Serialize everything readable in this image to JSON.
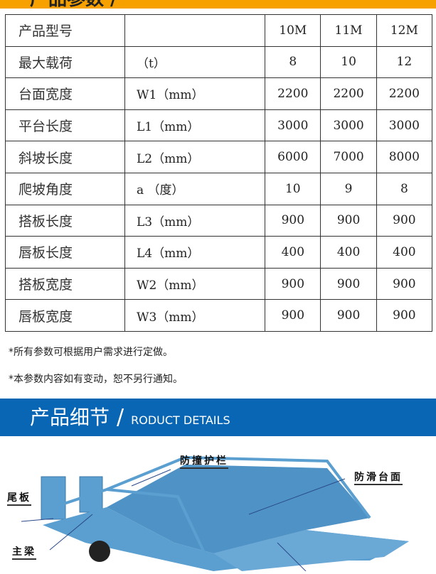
{
  "header_title": "产品参数 /",
  "table": {
    "rows": [
      [
        "产品型号",
        "",
        "10M",
        "11M",
        "12M"
      ],
      [
        "最大载荷",
        "（t）",
        "8",
        "10",
        "12"
      ],
      [
        "台面宽度",
        "W1（mm）",
        "2200",
        "2200",
        "2200"
      ],
      [
        "平台长度",
        "L1（mm）",
        "3000",
        "3000",
        "3000"
      ],
      [
        "斜坡长度",
        "L2（mm）",
        "6000",
        "7000",
        "8000"
      ],
      [
        "爬坡角度",
        "a （度）",
        "10",
        "9",
        "8"
      ],
      [
        "搭板长度",
        "L3（mm）",
        "900",
        "900",
        "900"
      ],
      [
        "唇板长度",
        "L4（mm）",
        "400",
        "400",
        "400"
      ],
      [
        "搭板宽度",
        "W2（mm）",
        "900",
        "900",
        "900"
      ],
      [
        "唇板宽度",
        "W3（mm）",
        "900",
        "900",
        "900"
      ]
    ]
  },
  "notes": [
    "*所有参数可根据用户需求进行定做。",
    "*本参数内容如有变动，恕不另行通知。"
  ],
  "banner": {
    "title": "产品细节",
    "slash": "/",
    "subtitle": "RODUCT DETAILS"
  },
  "photo_labels": {
    "guardrail": "防撞护栏",
    "anti_slip": "防滑台面",
    "tailboard": "尾板",
    "main_beam": "主梁"
  },
  "colors": {
    "orange": "#f7a100",
    "blue": "#0866b4",
    "ramp": "#5a9fd0"
  }
}
